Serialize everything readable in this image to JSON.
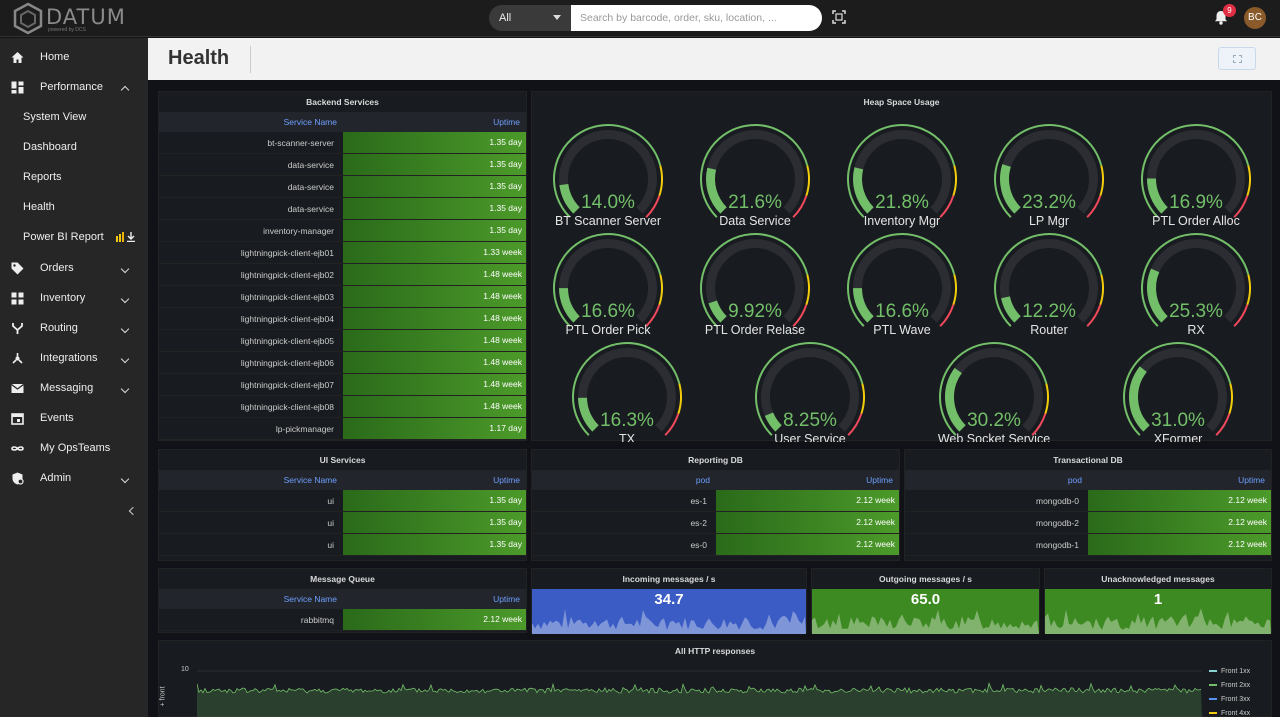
{
  "brand": {
    "name": "DATUM",
    "tagline": "powered by DCS"
  },
  "search": {
    "scope": "All",
    "placeholder": "Search by barcode, order, sku, location, ..."
  },
  "notifications": {
    "count": "9"
  },
  "user": {
    "initials": "BC"
  },
  "sidebar": {
    "items": [
      {
        "label": "Home",
        "icon": "home-icon"
      },
      {
        "label": "Performance",
        "icon": "dashboard-icon",
        "expanded": true
      },
      {
        "label": "System View",
        "sub": true
      },
      {
        "label": "Dashboard",
        "sub": true
      },
      {
        "label": "Reports",
        "sub": true
      },
      {
        "label": "Health",
        "sub": true
      },
      {
        "label": "Power BI Report",
        "sub": true
      },
      {
        "label": "Orders",
        "icon": "tag-icon"
      },
      {
        "label": "Inventory",
        "icon": "grid-icon"
      },
      {
        "label": "Routing",
        "icon": "fork-icon"
      },
      {
        "label": "Integrations",
        "icon": "hub-icon"
      },
      {
        "label": "Messaging",
        "icon": "mail-icon"
      },
      {
        "label": "Events",
        "icon": "calendar-icon"
      },
      {
        "label": "My OpsTeams",
        "icon": "infinity-icon"
      },
      {
        "label": "Admin",
        "icon": "admin-icon"
      }
    ]
  },
  "page": {
    "title": "Health"
  },
  "backend": {
    "title": "Backend Services",
    "col_name": "Service Name",
    "col_uptime": "Uptime",
    "rows": [
      [
        "bt-scanner-server",
        "1.35 day"
      ],
      [
        "data-service",
        "1.35 day"
      ],
      [
        "data-service",
        "1.35 day"
      ],
      [
        "data-service",
        "1.35 day"
      ],
      [
        "inventory-manager",
        "1.35 day"
      ],
      [
        "lightningpick-client-ejb01",
        "1.33 week"
      ],
      [
        "lightningpick-client-ejb02",
        "1.48 week"
      ],
      [
        "lightningpick-client-ejb03",
        "1.48 week"
      ],
      [
        "lightningpick-client-ejb04",
        "1.48 week"
      ],
      [
        "lightningpick-client-ejb05",
        "1.48 week"
      ],
      [
        "lightningpick-client-ejb06",
        "1.48 week"
      ],
      [
        "lightningpick-client-ejb07",
        "1.48 week"
      ],
      [
        "lightningpick-client-ejb08",
        "1.48 week"
      ],
      [
        "lp-pickmanager",
        "1.17 day"
      ]
    ]
  },
  "heap": {
    "title": "Heap Space Usage",
    "gauges": [
      {
        "name": "BT Scanner Server",
        "value": "14.0%",
        "fraction": 0.14
      },
      {
        "name": "Data Service",
        "value": "21.6%",
        "fraction": 0.216
      },
      {
        "name": "Inventory Mgr",
        "value": "21.8%",
        "fraction": 0.218
      },
      {
        "name": "LP Mgr",
        "value": "23.2%",
        "fraction": 0.232
      },
      {
        "name": "PTL Order Alloc",
        "value": "16.9%",
        "fraction": 0.169
      },
      {
        "name": "PTL Order Pick",
        "value": "16.6%",
        "fraction": 0.166
      },
      {
        "name": "PTL Order Relase",
        "value": "9.92%",
        "fraction": 0.0992
      },
      {
        "name": "PTL Wave",
        "value": "16.6%",
        "fraction": 0.166
      },
      {
        "name": "Router",
        "value": "12.2%",
        "fraction": 0.122
      },
      {
        "name": "RX",
        "value": "25.3%",
        "fraction": 0.253
      },
      {
        "name": "TX",
        "value": "16.3%",
        "fraction": 0.163
      },
      {
        "name": "User Service",
        "value": "8.25%",
        "fraction": 0.0825
      },
      {
        "name": "Web Socket Service",
        "value": "30.2%",
        "fraction": 0.302
      },
      {
        "name": "XFormer",
        "value": "31.0%",
        "fraction": 0.31
      }
    ]
  },
  "ui": {
    "title": "UI Services",
    "col_name": "Service Name",
    "col_uptime": "Uptime",
    "rows": [
      [
        "ui",
        "1.35 day"
      ],
      [
        "ui",
        "1.35 day"
      ],
      [
        "ui",
        "1.35 day"
      ]
    ]
  },
  "reporting": {
    "title": "Reporting DB",
    "col_name": "pod",
    "col_uptime": "Uptime",
    "rows": [
      [
        "es-1",
        "2.12 week"
      ],
      [
        "es-2",
        "2.12 week"
      ],
      [
        "es-0",
        "2.12 week"
      ]
    ]
  },
  "transactional": {
    "title": "Transactional DB",
    "col_name": "pod",
    "col_uptime": "Uptime",
    "rows": [
      [
        "mongodb-0",
        "2.12 week"
      ],
      [
        "mongodb-2",
        "2.12 week"
      ],
      [
        "mongodb-1",
        "2.12 week"
      ]
    ]
  },
  "mq": {
    "title": "Message Queue",
    "col_name": "Service Name",
    "col_uptime": "Uptime",
    "rows": [
      [
        "rabbitmq",
        "2.12 week"
      ]
    ]
  },
  "stats": {
    "incoming": {
      "title": "Incoming messages / s",
      "value": "34.7",
      "color": "#3a5cc4"
    },
    "outgoing": {
      "title": "Outgoing messages / s",
      "value": "65.0",
      "color": "#3e8a22"
    },
    "unack": {
      "title": "Unacknowledged messages",
      "value": "1",
      "color": "#3e8a22"
    }
  },
  "http": {
    "title": "All HTTP responses",
    "ytick": "10",
    "ylabel": "+ front",
    "legend": [
      {
        "label": "Front 1xx",
        "color": "#8ad4d4"
      },
      {
        "label": "Front 2xx",
        "color": "#73bf69"
      },
      {
        "label": "Front 3xx",
        "color": "#5794f2"
      },
      {
        "label": "Front 4xx",
        "color": "#f2cc0c"
      }
    ]
  }
}
